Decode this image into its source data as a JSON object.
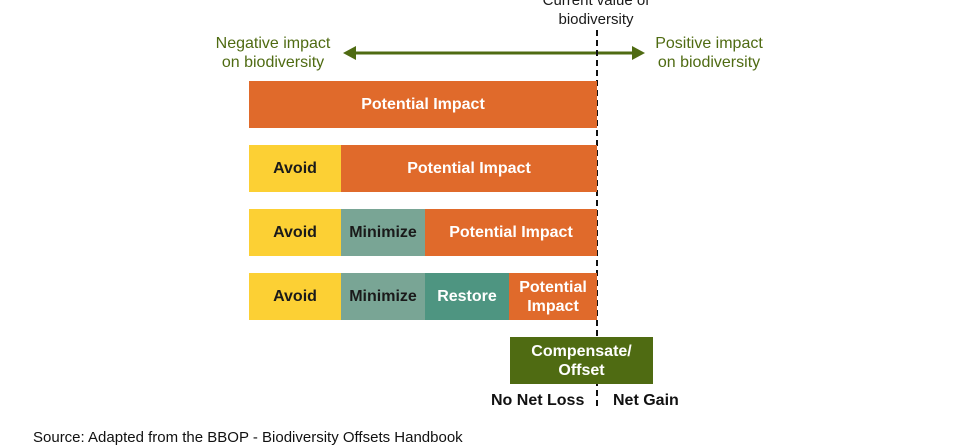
{
  "top_label": [
    "Current value of",
    "biodiversity"
  ],
  "negative_label": [
    "Negative impact",
    "on biodiversity"
  ],
  "positive_label": [
    "Positive impact",
    "on biodiversity"
  ],
  "rows": [
    {
      "segments": [
        {
          "label": "Potential Impact"
        }
      ]
    },
    {
      "segments": [
        {
          "label": "Avoid"
        },
        {
          "label": "Potential Impact"
        }
      ]
    },
    {
      "segments": [
        {
          "label": "Avoid"
        },
        {
          "label": "Minimize"
        },
        {
          "label": "Potential Impact"
        }
      ]
    },
    {
      "segments": [
        {
          "label": "Avoid"
        },
        {
          "label": "Minimize"
        },
        {
          "label": "Restore"
        },
        {
          "label": "Potential Impact",
          "lines": [
            "Potential",
            "Impact"
          ]
        }
      ]
    }
  ],
  "offset_label": [
    "Compensate/",
    "Offset"
  ],
  "no_net_loss": "No Net Loss",
  "net_gain": "Net Gain",
  "source": "Source: Adapted from the BBOP - Biodiversity Offsets Handbook",
  "colors": {
    "impact": "#e06a2b",
    "avoid": "#fcd034",
    "minimize": "#79a595",
    "restore": "#4e9581",
    "offset": "#4f6b12",
    "arrow": "#4f6b12"
  }
}
